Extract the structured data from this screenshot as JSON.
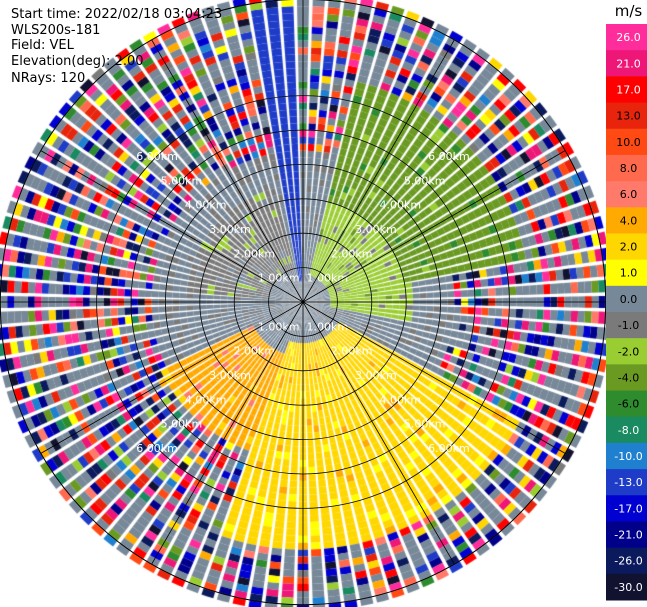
{
  "header": {
    "start_time": "Start time: 2022/02/18 03:04:23",
    "instrument": "WLS200s-181",
    "field": "Field: VEL",
    "elevation": "Elevation(deg): 2.00",
    "nrays": "NRays: 120"
  },
  "colorbar": {
    "unit": "m/s",
    "ticks": [
      "26.0",
      "21.0",
      "17.0",
      "13.0",
      "10.0",
      "8.0",
      "6.0",
      "4.0",
      "2.0",
      "1.0",
      "0.0",
      "-1.0",
      "-2.0",
      "-4.0",
      "-6.0",
      "-8.0",
      "-10.0",
      "-13.0",
      "-17.0",
      "-21.0",
      "-26.0",
      "-30.0"
    ],
    "colors": [
      "#ff2d9b",
      "#ee1677",
      "#ff0000",
      "#e8240c",
      "#ff4a14",
      "#ff6a4e",
      "#ff7a6a",
      "#ffaa00",
      "#ffd700",
      "#ffff00",
      "#778899",
      "#7a7a7a",
      "#9acd32",
      "#6a9a22",
      "#2e8b2e",
      "#1a8a60",
      "#2080d0",
      "#1e3cc8",
      "#0000d0",
      "#00008b",
      "#0b1a5c",
      "#111130"
    ]
  },
  "chart_data": {
    "type": "ppi",
    "title": "Start time: 2022/02/18 03:04:23",
    "field": "VEL",
    "units": "m/s",
    "elevation_deg": 2.0,
    "nrays": 120,
    "range_ring_labels": [
      "1.00km",
      "2.00km",
      "3.00km",
      "4.00km",
      "5.00km",
      "6.00km"
    ],
    "range_rings_km": [
      1,
      2,
      3,
      4,
      5,
      6
    ],
    "max_range_km": 8.8,
    "sectors": [
      {
        "name": "north-west-inner",
        "az_from": 275,
        "az_to": 345,
        "range_km": [
          1.0,
          3.2
        ],
        "velocity": -1.0
      },
      {
        "name": "north-east-inner",
        "az_from": 15,
        "az_to": 100,
        "range_km": [
          0.8,
          3.0
        ],
        "velocity": -2.0
      },
      {
        "name": "north-east-mid",
        "az_from": 15,
        "az_to": 80,
        "range_km": [
          3.0,
          6.5
        ],
        "velocity": -4.0
      },
      {
        "name": "south-south-east",
        "az_from": 120,
        "az_to": 200,
        "range_km": [
          1.2,
          7.0
        ],
        "velocity": 2.0
      },
      {
        "name": "south-west-inner",
        "az_from": 200,
        "az_to": 245,
        "range_km": [
          1.5,
          4.5
        ],
        "velocity": 4.0
      },
      {
        "name": "north-narrow",
        "az_from": 350,
        "az_to": 358,
        "range_km": [
          0.5,
          8.5
        ],
        "velocity": -13.0
      }
    ]
  }
}
